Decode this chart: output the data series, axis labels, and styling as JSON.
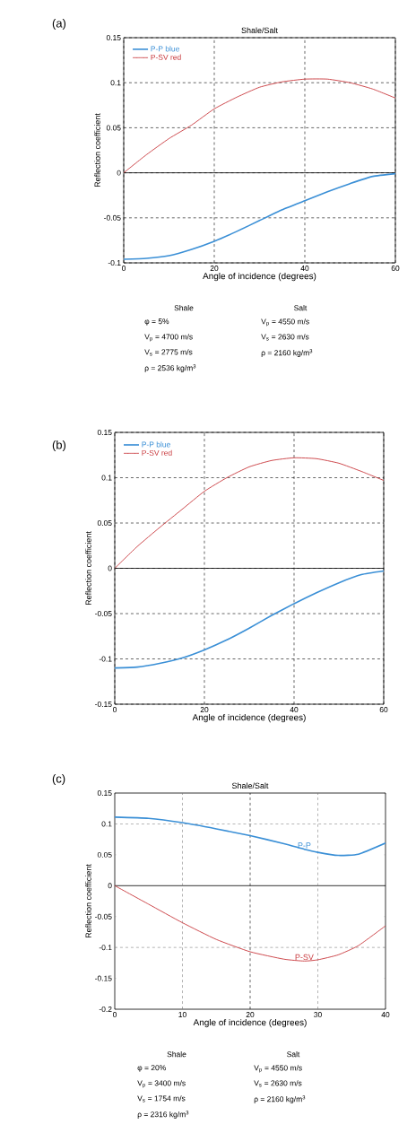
{
  "chart_data": [
    {
      "type": "line",
      "title": "Shale/Salt",
      "xlabel": "Angle of incidence (degrees)",
      "ylabel": "Reflection coefficient",
      "x": [
        0,
        5,
        10,
        15,
        20,
        25,
        30,
        35,
        40,
        45,
        50,
        55,
        60
      ],
      "series": [
        {
          "name": "P-P blue",
          "color": "#3a8fd6",
          "values": [
            -0.096,
            -0.095,
            -0.092,
            -0.085,
            -0.076,
            -0.065,
            -0.053,
            -0.041,
            -0.031,
            -0.021,
            -0.012,
            -0.004,
            -0.001
          ]
        },
        {
          "name": "P-SV red",
          "color": "#c8383c",
          "values": [
            0,
            0.02,
            0.038,
            0.053,
            0.071,
            0.084,
            0.095,
            0.101,
            0.104,
            0.104,
            0.1,
            0.093,
            0.083
          ]
        }
      ],
      "xlim": [
        0,
        60
      ],
      "xticks": [
        0,
        20,
        40,
        60
      ],
      "ylim": [
        -0.1,
        0.15
      ],
      "yticks": [
        -0.1,
        -0.05,
        0,
        0.05,
        0.1,
        0.15
      ],
      "grid": true,
      "legend": "top left",
      "marker": "none",
      "line_style": "solid",
      "ref_lines": [
        {
          "axis": "y",
          "value": 0,
          "color": "#000000",
          "line_style": "solid"
        }
      ],
      "annotations": [
        "(a)",
        "Shale",
        "φ = 5%",
        "V$_{p}$ = 4700 m/s",
        "V$_{s}$ = 2775 m/s",
        "ρ = 2536 kg/m$^{3}$",
        "Salt",
        "V$_{p}$ = 4550 m/s",
        "V$_{s}$ = 2630 m/s",
        "ρ = 2160 kg/m$^{3}$"
      ]
    },
    {
      "type": "line",
      "xlabel": "Angle of incidence (degrees)",
      "ylabel": "Reflection coefficient",
      "x": [
        0,
        5,
        10,
        15,
        20,
        25,
        30,
        35,
        40,
        45,
        50,
        55,
        60
      ],
      "series": [
        {
          "name": "P-P blue",
          "color": "#3a8fd6",
          "values": [
            -0.11,
            -0.109,
            -0.105,
            -0.099,
            -0.09,
            -0.079,
            -0.066,
            -0.052,
            -0.039,
            -0.027,
            -0.016,
            -0.007,
            -0.003
          ]
        },
        {
          "name": "P-SV red",
          "color": "#c8383c",
          "values": [
            0,
            0.024,
            0.045,
            0.065,
            0.085,
            0.1,
            0.112,
            0.119,
            0.122,
            0.121,
            0.116,
            0.107,
            0.097
          ]
        }
      ],
      "xlim": [
        0,
        60
      ],
      "xticks": [
        0,
        20,
        40,
        60
      ],
      "ylim": [
        -0.15,
        0.15
      ],
      "yticks": [
        -0.15,
        -0.1,
        -0.05,
        0,
        0.05,
        0.1,
        0.15
      ],
      "grid": true,
      "legend": "top left",
      "marker": "none",
      "line_style": "solid",
      "ref_lines": [
        {
          "axis": "y",
          "value": 0,
          "color": "#000000",
          "line_style": "solid"
        }
      ],
      "annotations": [
        "(b)"
      ]
    },
    {
      "type": "line",
      "title": "Shale/Salt",
      "xlabel": "Angle of incidence (degrees)",
      "ylabel": "Reflection coefficient",
      "x": [
        0,
        5,
        10,
        15,
        20,
        25,
        28,
        30,
        33,
        36,
        40
      ],
      "series": [
        {
          "name": "P-P",
          "color": "#3a8fd6",
          "values": [
            0.111,
            0.109,
            0.102,
            0.092,
            0.081,
            0.068,
            0.059,
            0.054,
            0.049,
            0.051,
            0.069
          ]
        },
        {
          "name": "P-SV",
          "color": "#c8383c",
          "values": [
            0,
            -0.03,
            -0.06,
            -0.087,
            -0.107,
            -0.119,
            -0.122,
            -0.12,
            -0.112,
            -0.097,
            -0.065
          ]
        }
      ],
      "xlim": [
        0,
        40
      ],
      "xticks": [
        0,
        10,
        20,
        30,
        40
      ],
      "ylim": [
        -0.2,
        0.15
      ],
      "yticks": [
        -0.2,
        -0.15,
        -0.1,
        -0.05,
        0,
        0.05,
        0.1,
        0.15
      ],
      "grid": false,
      "legend": false,
      "marker": "none",
      "line_style": "solid",
      "ref_lines": [
        {
          "axis": "y",
          "value": 0,
          "color": "#000000",
          "line_style": "solid"
        },
        {
          "axis": "y",
          "value": 0.1,
          "color": "#808080",
          "line_style": "dashed"
        },
        {
          "axis": "y",
          "value": -0.1,
          "color": "#808080",
          "line_style": "dashed"
        },
        {
          "axis": "x",
          "value": 10,
          "color": "#808080",
          "line_style": "dashed"
        },
        {
          "axis": "x",
          "value": 20,
          "color": "#000000",
          "line_style": "dashed"
        },
        {
          "axis": "x",
          "value": 30,
          "color": "#808080",
          "line_style": "dashed"
        }
      ],
      "annotations": [
        "(c)",
        "Shale",
        "φ = 20%",
        "V$_{p}$ = 3400 m/s",
        "V$_{s}$ = 1754 m/s",
        "ρ = 2316 kg/m$^{3}$",
        "Salt",
        "V$_{p}$ = 4550 m/s",
        "V$_{s}$ = 2630 m/s",
        "ρ = 2160 kg/m$^{3}$"
      ]
    }
  ]
}
